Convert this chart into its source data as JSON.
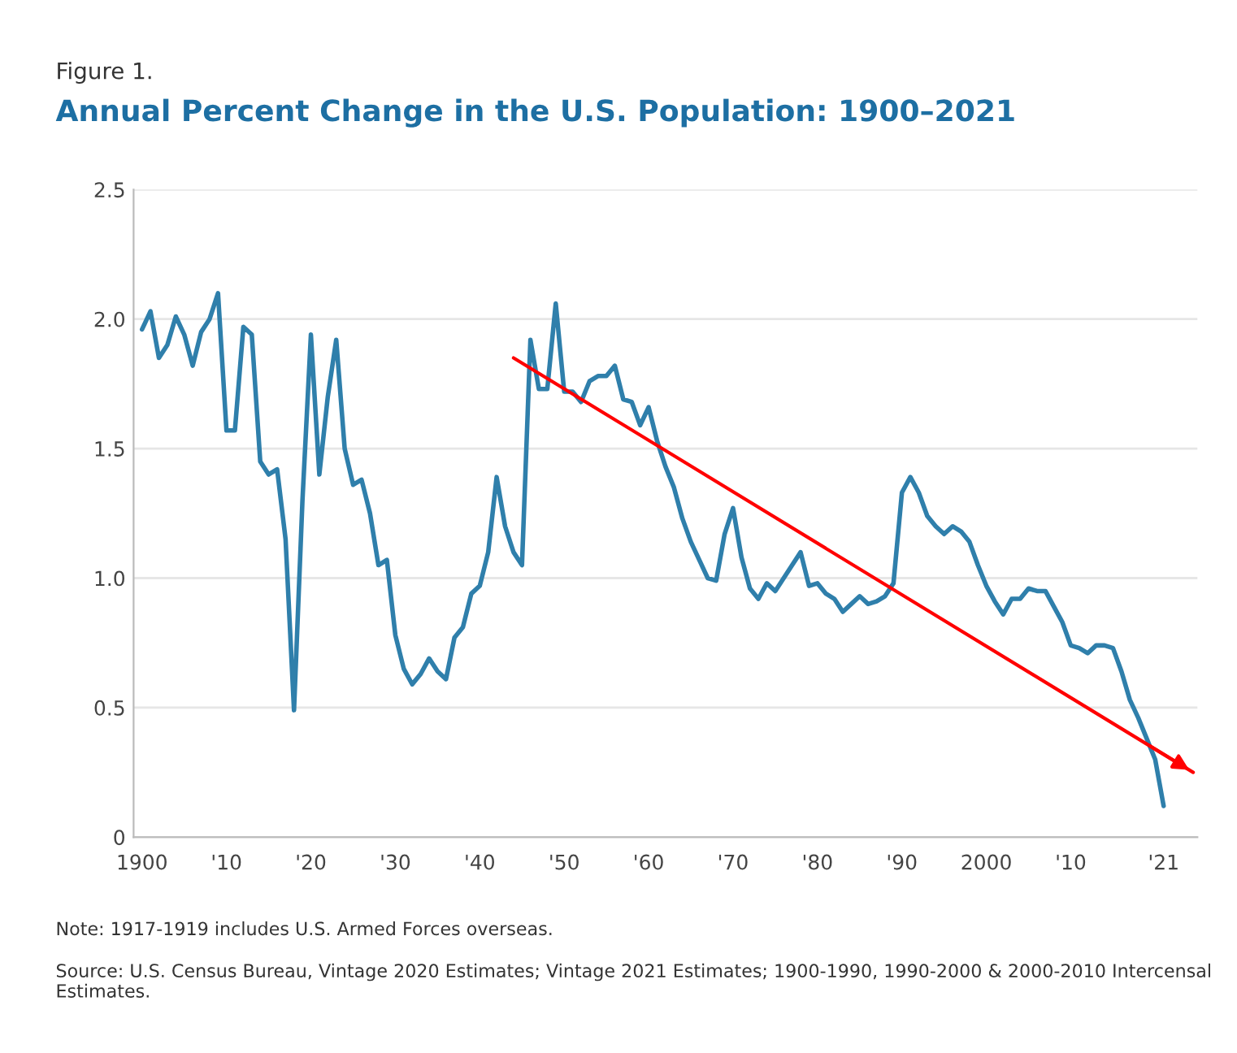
{
  "chart_data": {
    "type": "line",
    "title": "Annual Percent Change in the U.S. Population: 1900–2021",
    "annotations": [
      "Figure 1.",
      "Note: 1917-1919 includes U.S. Armed Forces overseas.",
      "Source: U.S. Census Bureau, Vintage 2020 Estimates; Vintage 2021 Estimates; 1900-1990, 1990-2000 & 2000-2010 Intercensal Estimates."
    ],
    "x": [
      1900,
      1901,
      1902,
      1903,
      1904,
      1905,
      1906,
      1907,
      1908,
      1909,
      1910,
      1911,
      1912,
      1913,
      1914,
      1915,
      1916,
      1917,
      1918,
      1919,
      1920,
      1921,
      1922,
      1923,
      1924,
      1925,
      1926,
      1927,
      1928,
      1929,
      1930,
      1931,
      1932,
      1933,
      1934,
      1935,
      1936,
      1937,
      1938,
      1939,
      1940,
      1941,
      1942,
      1943,
      1944,
      1945,
      1946,
      1947,
      1948,
      1949,
      1950,
      1951,
      1952,
      1953,
      1954,
      1955,
      1956,
      1957,
      1958,
      1959,
      1960,
      1961,
      1962,
      1963,
      1964,
      1965,
      1966,
      1967,
      1968,
      1969,
      1970,
      1971,
      1972,
      1973,
      1974,
      1975,
      1976,
      1977,
      1978,
      1979,
      1980,
      1981,
      1982,
      1983,
      1984,
      1985,
      1986,
      1987,
      1988,
      1989,
      1990,
      1991,
      1992,
      1993,
      1994,
      1995,
      1996,
      1997,
      1998,
      1999,
      2000,
      2001,
      2002,
      2003,
      2004,
      2005,
      2006,
      2007,
      2008,
      2009,
      2010,
      2011,
      2012,
      2013,
      2014,
      2015,
      2016,
      2017,
      2018,
      2019,
      2020,
      2021
    ],
    "series": [
      {
        "color": "#2f7fab",
        "values": [
          1.96,
          2.03,
          1.85,
          1.9,
          2.01,
          1.94,
          1.82,
          1.95,
          2.0,
          2.1,
          1.57,
          1.57,
          1.97,
          1.94,
          1.45,
          1.4,
          1.42,
          1.15,
          0.49,
          1.3,
          1.94,
          1.4,
          1.7,
          1.92,
          1.5,
          1.36,
          1.38,
          1.25,
          1.05,
          1.07,
          0.78,
          0.65,
          0.59,
          0.63,
          0.69,
          0.64,
          0.61,
          0.77,
          0.81,
          0.94,
          0.97,
          1.1,
          1.39,
          1.2,
          1.1,
          1.05,
          1.92,
          1.73,
          1.73,
          2.06,
          1.72,
          1.72,
          1.68,
          1.76,
          1.78,
          1.78,
          1.82,
          1.69,
          1.68,
          1.59,
          1.66,
          1.53,
          1.43,
          1.35,
          1.23,
          1.14,
          1.07,
          1.0,
          0.99,
          1.17,
          1.27,
          1.08,
          0.96,
          0.92,
          0.98,
          0.95,
          1.0,
          1.05,
          1.1,
          0.97,
          0.98,
          0.94,
          0.92,
          0.87,
          0.9,
          0.93,
          0.9,
          0.91,
          0.93,
          0.98,
          1.33,
          1.39,
          1.33,
          1.24,
          1.2,
          1.17,
          1.2,
          1.18,
          1.14,
          1.05,
          0.97,
          0.91,
          0.86,
          0.92,
          0.92,
          0.96,
          0.95,
          0.95,
          0.89,
          0.83,
          0.74,
          0.73,
          0.71,
          0.74,
          0.74,
          0.73,
          0.64,
          0.53,
          0.46,
          0.38,
          0.3,
          0.12
        ]
      },
      {
        "type": "line",
        "x": [
          1944,
          2024.5
        ],
        "color": "#ff0000",
        "values": [
          1.85,
          0.25
        ]
      }
    ],
    "xlim": [
      1899,
      2025
    ],
    "ylim": [
      0,
      2.5
    ],
    "xticks": [
      1900,
      {
        "value": 1910,
        "label": "'10"
      },
      {
        "value": 1920,
        "label": "'20"
      },
      {
        "value": 1930,
        "label": "'30"
      },
      {
        "value": 1940,
        "label": "'40"
      },
      {
        "value": 1950,
        "label": "'50"
      },
      {
        "value": 1960,
        "label": "'60"
      },
      {
        "value": 1970,
        "label": "'70"
      },
      {
        "value": 1980,
        "label": "'80"
      },
      {
        "value": 1990,
        "label": "'90"
      },
      2000,
      {
        "value": 2010,
        "label": "'10"
      },
      {
        "value": 2021,
        "label": "'21"
      }
    ],
    "yticks": [
      0,
      {
        "value": 0.5,
        "label": "0.5"
      },
      {
        "value": 1,
        "label": "1.0"
      },
      {
        "value": 1.5,
        "label": "1.5"
      },
      {
        "value": 2,
        "label": "2.0"
      },
      {
        "value": 2.5,
        "label": "2.5"
      }
    ],
    "grid": "y",
    "legend": false
  }
}
